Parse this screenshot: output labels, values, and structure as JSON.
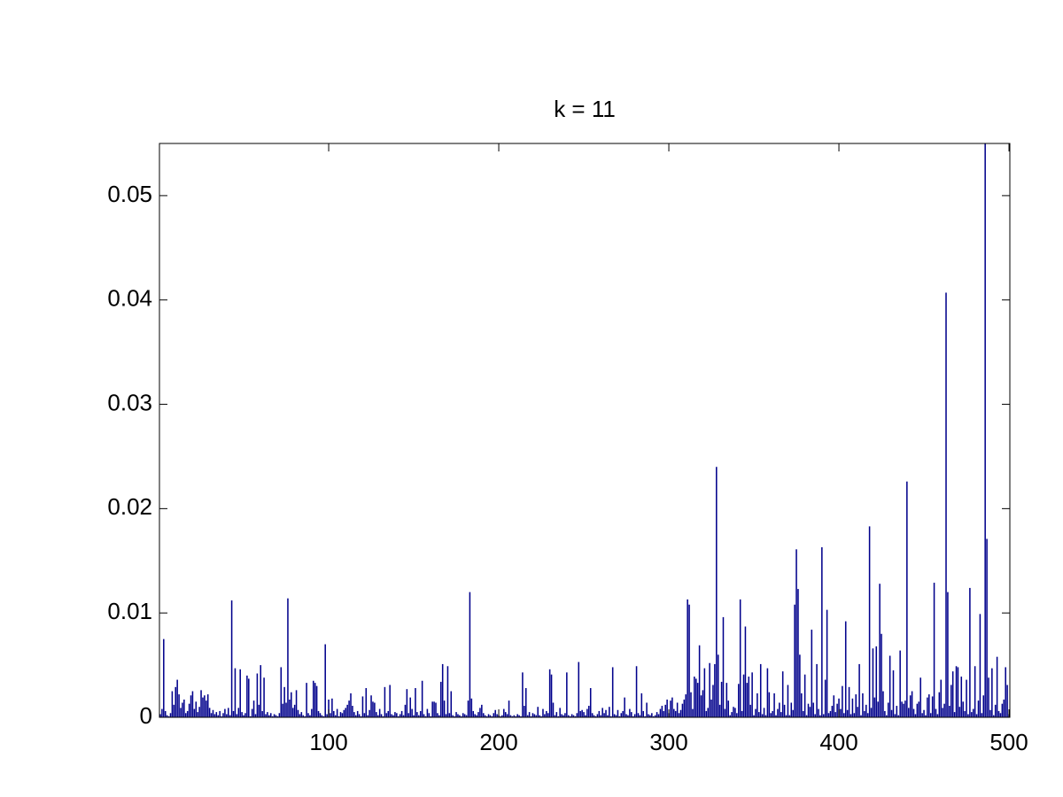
{
  "chart_data": {
    "type": "bar",
    "title": "k = 11",
    "color": "#00008b",
    "xlim": [
      0.5,
      500.5
    ],
    "xticks": [
      100,
      200,
      300,
      400,
      500
    ],
    "ylim": [
      0,
      0.055
    ],
    "yticks": [
      0,
      0.01,
      0.02,
      0.03,
      0.04,
      0.05
    ],
    "values": [
      0.0003,
      0.0008,
      0.0075,
      0.0006,
      0.0002,
      0.0001,
      0.0004,
      0.0025,
      0.0012,
      0.0029,
      0.0036,
      0.0022,
      0.0009,
      0.0014,
      0.0017,
      0.0004,
      0.0006,
      0.0013,
      0.0021,
      0.0025,
      0.0008,
      0.0015,
      0.0005,
      0.001,
      0.0026,
      0.0019,
      0.0021,
      0.0016,
      0.0022,
      0.0009,
      0.0004,
      0.0007,
      0.0003,
      0.0005,
      0.0002,
      0.0006,
      0.0001,
      0.0004,
      0.0008,
      0.0003,
      0.0009,
      0.0002,
      0.0112,
      0.0006,
      0.0047,
      0.0003,
      0.0009,
      0.0046,
      0.0005,
      0.0002,
      0.0004,
      0.004,
      0.0037,
      0.0001,
      0.0008,
      0.0016,
      0.0003,
      0.0042,
      0.0012,
      0.005,
      0.0006,
      0.0038,
      0.0003,
      0.0005,
      0.0002,
      0.0004,
      0.0001,
      0.0003,
      0.0002,
      0.0001,
      0.0004,
      0.0048,
      0.0013,
      0.0029,
      0.0014,
      0.0114,
      0.0017,
      0.0024,
      0.0009,
      0.0012,
      0.0026,
      0.0007,
      0.0003,
      0.0005,
      0.0002,
      0.0001,
      0.0033,
      0.0004,
      0.0002,
      0.0008,
      0.0035,
      0.0033,
      0.003,
      0.0006,
      0.0004,
      0.0002,
      0.0001,
      0.007,
      0.0003,
      0.0017,
      0.0004,
      0.0018,
      0.0006,
      0.0002,
      0.0008,
      0.0001,
      0.0005,
      0.0004,
      0.0007,
      0.0009,
      0.0012,
      0.0016,
      0.0023,
      0.0011,
      0.0005,
      0.0002,
      0.0006,
      0.0003,
      0.0001,
      0.002,
      0.0004,
      0.0028,
      0.0002,
      0.0007,
      0.0021,
      0.0015,
      0.0014,
      0.0005,
      0.0002,
      0.0008,
      0.0003,
      0.0001,
      0.0029,
      0.0004,
      0.0006,
      0.0031,
      0.0003,
      0.0002,
      0.0005,
      0.0004,
      0.0001,
      0.0003,
      0.0006,
      0.0002,
      0.0012,
      0.0027,
      0.0004,
      0.0019,
      0.0008,
      0.0002,
      0.0028,
      0.0005,
      0.0002,
      0.0006,
      0.0035,
      0.0003,
      0.0001,
      0.0008,
      0.0004,
      0.0001,
      0.0015,
      0.0015,
      0.0014,
      0.0004,
      0.0002,
      0.0034,
      0.0051,
      0.0016,
      0.0003,
      0.0049,
      0.0004,
      0.0025,
      0.0002,
      0.0001,
      0.0005,
      0.0003,
      0.0002,
      0.0001,
      0.0004,
      0.0003,
      0.0002,
      0.0016,
      0.012,
      0.0018,
      0.0006,
      0.0003,
      0.0002,
      0.0005,
      0.0009,
      0.0012,
      0.0004,
      0.0002,
      0.0001,
      0.0003,
      0.0002,
      0.0001,
      0.0004,
      0.0007,
      0.0003,
      0.0002,
      0.0001,
      0.0002,
      0.0008,
      0.0005,
      0.0003,
      0.0016,
      0.0002,
      0.0001,
      0.0002,
      0.0001,
      0.0003,
      0.0002,
      0.0001,
      0.0043,
      0.0011,
      0.0028,
      0.0002,
      0.0005,
      0.0001,
      0.0004,
      0.0003,
      0.0002,
      0.001,
      0.0002,
      0.0001,
      0.0008,
      0.0003,
      0.0006,
      0.0004,
      0.0046,
      0.0041,
      0.0014,
      0.0002,
      0.0005,
      0.0001,
      0.0009,
      0.0003,
      0.0002,
      0.0004,
      0.0043,
      0.0002,
      0.0001,
      0.0003,
      0.0002,
      0.0001,
      0.0004,
      0.0053,
      0.0006,
      0.0007,
      0.0005,
      0.0002,
      0.0008,
      0.0011,
      0.0028,
      0.0004,
      0.0002,
      0.0001,
      0.0003,
      0.0006,
      0.0002,
      0.0009,
      0.0004,
      0.0007,
      0.0002,
      0.001,
      0.0001,
      0.0048,
      0.0003,
      0.0002,
      0.0007,
      0.0001,
      0.0004,
      0.0006,
      0.0019,
      0.0003,
      0.0002,
      0.0008,
      0.0005,
      0.0001,
      0.0003,
      0.0049,
      0.0004,
      0.0002,
      0.0023,
      0.0006,
      0.0001,
      0.0014,
      0.0003,
      0.0002,
      0.0004,
      0.0001,
      0.0002,
      0.0005,
      0.0003,
      0.0008,
      0.0011,
      0.0006,
      0.0012,
      0.0017,
      0.0004,
      0.0016,
      0.0019,
      0.0008,
      0.0006,
      0.0014,
      0.0004,
      0.0007,
      0.0013,
      0.0017,
      0.0022,
      0.0113,
      0.0108,
      0.0024,
      0.0008,
      0.0039,
      0.0037,
      0.0033,
      0.0069,
      0.0021,
      0.0026,
      0.0047,
      0.0006,
      0.0009,
      0.0052,
      0.0017,
      0.0031,
      0.0051,
      0.024,
      0.006,
      0.0012,
      0.0034,
      0.0096,
      0.0008,
      0.0033,
      0.0016,
      0.0002,
      0.0005,
      0.001,
      0.0009,
      0.0004,
      0.0032,
      0.0113,
      0.0006,
      0.0041,
      0.0087,
      0.0033,
      0.0039,
      0.0012,
      0.0043,
      0.0002,
      0.0008,
      0.0023,
      0.0005,
      0.0051,
      0.0003,
      0.0009,
      0.0002,
      0.0047,
      0.0024,
      0.0004,
      0.0006,
      0.0023,
      0.0002,
      0.0008,
      0.0014,
      0.0005,
      0.0044,
      0.0012,
      0.0002,
      0.0031,
      0.0002,
      0.0014,
      0.0007,
      0.0108,
      0.0161,
      0.0123,
      0.006,
      0.0023,
      0.0006,
      0.0041,
      0.0002,
      0.0013,
      0.001,
      0.0084,
      0.0014,
      0.0003,
      0.0051,
      0.0008,
      0.0002,
      0.0163,
      0.0003,
      0.0036,
      0.0103,
      0.0004,
      0.0006,
      0.0011,
      0.0021,
      0.0005,
      0.0013,
      0.0018,
      0.0008,
      0.003,
      0.0004,
      0.0092,
      0.0007,
      0.0029,
      0.0003,
      0.0018,
      0.0004,
      0.0022,
      0.001,
      0.0051,
      0.0002,
      0.0023,
      0.0006,
      0.0012,
      0.0004,
      0.0183,
      0.0009,
      0.0066,
      0.0019,
      0.0068,
      0.0015,
      0.0128,
      0.008,
      0.0025,
      0.0006,
      0.0002,
      0.0014,
      0.0059,
      0.0007,
      0.0045,
      0.0003,
      0.0011,
      0.0002,
      0.0064,
      0.0015,
      0.0013,
      0.0016,
      0.0226,
      0.0009,
      0.0021,
      0.0025,
      0.0008,
      0.0003,
      0.0013,
      0.0015,
      0.0038,
      0.0004,
      0.0007,
      0.0002,
      0.0019,
      0.0022,
      0.0004,
      0.002,
      0.0129,
      0.0008,
      0.0003,
      0.0024,
      0.0036,
      0.0009,
      0.0013,
      0.0407,
      0.012,
      0.0011,
      0.0031,
      0.0044,
      0.0005,
      0.0049,
      0.0048,
      0.001,
      0.0039,
      0.0015,
      0.0006,
      0.0036,
      0.0003,
      0.0124,
      0.0005,
      0.0008,
      0.0049,
      0.0003,
      0.0016,
      0.0099,
      0.0004,
      0.0021,
      0.055,
      0.0171,
      0.0038,
      0.0007,
      0.0047,
      0.0002,
      0.0012,
      0.0058,
      0.0006,
      0.0004,
      0.0013,
      0.0017,
      0.0048,
      0.0031,
      0.0003
    ]
  }
}
